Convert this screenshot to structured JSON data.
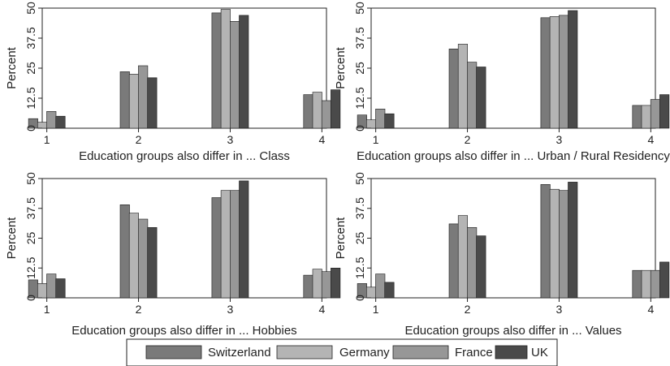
{
  "chart_data": [
    {
      "type": "bar",
      "xlabel": "Education groups also differ in ... Class",
      "ylabel": "Percent",
      "categories": [
        "1",
        "2",
        "3",
        "4"
      ],
      "xlim": [
        0.95,
        4.05
      ],
      "ylim": [
        0,
        50
      ],
      "yticks": [
        "0",
        "12.5",
        "25",
        "37.5",
        "50"
      ],
      "grid": false,
      "series": [
        {
          "name": "Switzerland",
          "values": [
            4,
            23.5,
            48,
            14
          ]
        },
        {
          "name": "Germany",
          "values": [
            2.5,
            22.5,
            49.5,
            15
          ]
        },
        {
          "name": "France",
          "values": [
            7,
            26,
            44.5,
            11.5
          ]
        },
        {
          "name": "UK",
          "values": [
            5,
            21,
            47,
            16
          ]
        }
      ]
    },
    {
      "type": "bar",
      "xlabel": "Education groups also differ in ... Urban / Rural Residency",
      "ylabel": "Percent",
      "categories": [
        "1",
        "2",
        "3",
        "4"
      ],
      "xlim": [
        0.95,
        4.05
      ],
      "ylim": [
        0,
        50
      ],
      "yticks": [
        "0",
        "12.5",
        "25",
        "37.5",
        "50"
      ],
      "grid": false,
      "series": [
        {
          "name": "Switzerland",
          "values": [
            5.5,
            33,
            46,
            9.5
          ]
        },
        {
          "name": "Germany",
          "values": [
            3.5,
            35,
            46.5,
            9.5
          ]
        },
        {
          "name": "France",
          "values": [
            8,
            27.5,
            47,
            12
          ]
        },
        {
          "name": "UK",
          "values": [
            6,
            25.5,
            49,
            14
          ]
        }
      ]
    },
    {
      "type": "bar",
      "xlabel": "Education groups also differ in ... Hobbies",
      "ylabel": "Percent",
      "categories": [
        "1",
        "2",
        "3",
        "4"
      ],
      "xlim": [
        0.95,
        4.05
      ],
      "ylim": [
        0,
        50
      ],
      "yticks": [
        "0",
        "12.5",
        "25",
        "37.5",
        "50"
      ],
      "grid": false,
      "series": [
        {
          "name": "Switzerland",
          "values": [
            7.5,
            39,
            42,
            9.5
          ]
        },
        {
          "name": "Germany",
          "values": [
            6,
            35.5,
            45,
            12
          ]
        },
        {
          "name": "France",
          "values": [
            10,
            33,
            45,
            11
          ]
        },
        {
          "name": "UK",
          "values": [
            8,
            29.5,
            49,
            12.5
          ]
        }
      ]
    },
    {
      "type": "bar",
      "xlabel": "Education groups also differ in ... Values",
      "ylabel": "Percent",
      "categories": [
        "1",
        "2",
        "3",
        "4"
      ],
      "xlim": [
        0.95,
        4.05
      ],
      "ylim": [
        0,
        50
      ],
      "yticks": [
        "0",
        "12.5",
        "25",
        "37.5",
        "50"
      ],
      "grid": false,
      "series": [
        {
          "name": "Switzerland",
          "values": [
            6,
            31,
            47.5,
            11.5
          ]
        },
        {
          "name": "Germany",
          "values": [
            4.5,
            34.5,
            45.5,
            11.5
          ]
        },
        {
          "name": "France",
          "values": [
            10,
            29.5,
            45,
            11.5
          ]
        },
        {
          "name": "UK",
          "values": [
            6.5,
            26,
            48.5,
            15
          ]
        }
      ]
    }
  ],
  "legend": {
    "position": "bottom",
    "items": [
      {
        "label": "Switzerland",
        "color": "#7a7a7a"
      },
      {
        "label": "Germany",
        "color": "#b4b4b4"
      },
      {
        "label": "France",
        "color": "#979797"
      },
      {
        "label": "UK",
        "color": "#4a4a4a"
      }
    ]
  }
}
